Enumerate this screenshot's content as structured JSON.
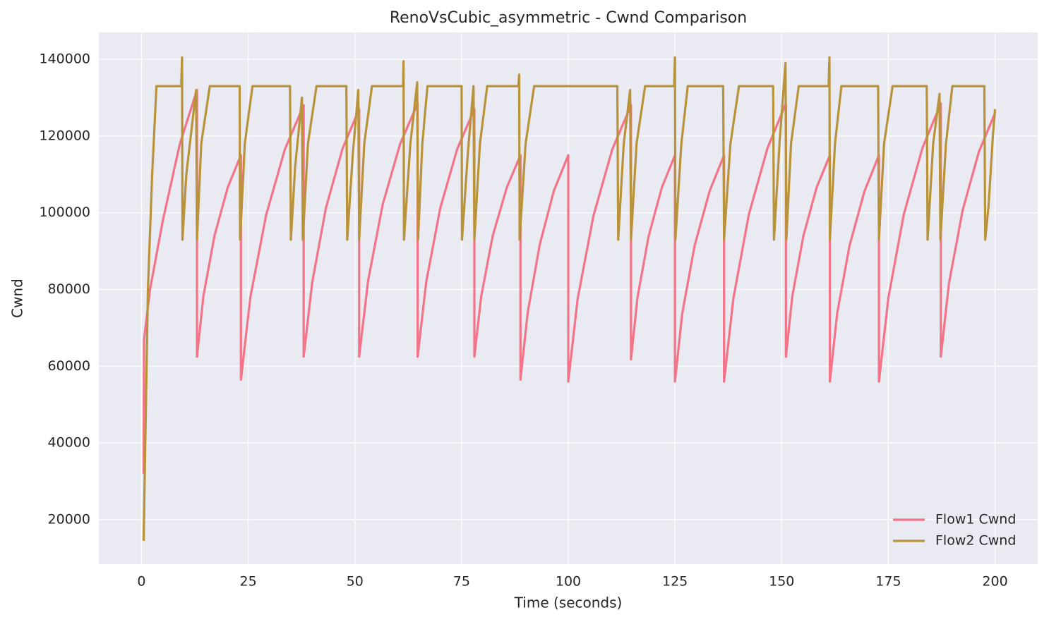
{
  "chart_data": {
    "type": "line",
    "title": "RenoVsCubic_asymmetric - Cwnd Comparison",
    "x_label": "Time (seconds)",
    "y_label": "Cwnd",
    "xlim": [
      -10,
      210
    ],
    "ylim": [
      8400,
      147000
    ],
    "xticks": [
      0,
      25,
      50,
      75,
      100,
      125,
      150,
      175,
      200
    ],
    "yticks": [
      20000,
      40000,
      60000,
      80000,
      100000,
      120000,
      140000
    ],
    "grid": true,
    "legend": "lower right",
    "series": [
      {
        "name": "Flow1 Cwnd",
        "color": "#f37488",
        "x": [
          0.5,
          0.6,
          2,
          5,
          9,
          13,
          13,
          14.5,
          17.1,
          20.2,
          23.3,
          23.3,
          25.5,
          29.2,
          33.6,
          38,
          38,
          40,
          43.2,
          47.1,
          51,
          51,
          53.1,
          56.5,
          60.6,
          64.7,
          64.7,
          66.7,
          70,
          74,
          78,
          78,
          79.6,
          82.3,
          85.6,
          88.8,
          88.8,
          90.5,
          93.3,
          96.6,
          100,
          100,
          102.2,
          105.9,
          110.3,
          114.7,
          114.7,
          116.2,
          118.8,
          121.9,
          125,
          125,
          126.7,
          129.6,
          133.1,
          136.5,
          136.5,
          138.7,
          142.3,
          146.7,
          151,
          151,
          152.5,
          155.1,
          158.2,
          161.3,
          161.3,
          163,
          165.9,
          169.4,
          172.8,
          172.8,
          175,
          178.6,
          183,
          187.3,
          187.3,
          189.2,
          192.4,
          196.2,
          200
        ],
        "values": [
          32000,
          67000,
          80000,
          98000,
          118000,
          132000,
          62500,
          78250,
          94000,
          106600,
          115000,
          56500,
          77950,
          99400,
          116560,
          128000,
          62500,
          81850,
          101200,
          116680,
          127000,
          62500,
          82300,
          102100,
          117940,
          128500,
          62500,
          81850,
          101200,
          116680,
          127000,
          62500,
          78250,
          94000,
          106600,
          115000,
          56500,
          74050,
          91600,
          105640,
          115000,
          56000,
          77600,
          99200,
          116480,
          128000,
          61800,
          77760,
          93720,
          106490,
          115000,
          56000,
          73700,
          91400,
          105560,
          115000,
          56000,
          77750,
          99500,
          116900,
          128500,
          62500,
          78250,
          94000,
          106600,
          115000,
          56000,
          73700,
          91400,
          105560,
          115000,
          56000,
          77750,
          99500,
          116900,
          128500,
          62500,
          81550,
          100600,
          115840,
          126000
        ]
      },
      {
        "name": "Flow2 Cwnd",
        "color": "#b9933a",
        "x": [
          0.5,
          0.7,
          1.5,
          2.5,
          3.5,
          9.3,
          9.5,
          9.6,
          10.5,
          12.8,
          13,
          14,
          16,
          23,
          23.1,
          24.2,
          26,
          34.8,
          35,
          36,
          37.6,
          37.8,
          39,
          41,
          48,
          48.2,
          49.5,
          50.8,
          51,
          52.2,
          54,
          61.3,
          61.4,
          61.5,
          63,
          64.6,
          64.8,
          65.8,
          67,
          75,
          75.1,
          76.5,
          77.8,
          78,
          79.3,
          81,
          88.3,
          88.5,
          88.6,
          90,
          92,
          111.5,
          111.7,
          113,
          114.5,
          114.7,
          116,
          118,
          124.8,
          125,
          125.1,
          126.5,
          128,
          136.3,
          136.5,
          138,
          140,
          148,
          148.2,
          149.5,
          150.9,
          151.1,
          152.2,
          154,
          161,
          161.2,
          161.3,
          162.5,
          164,
          172.6,
          172.8,
          174,
          176,
          184,
          184.2,
          185.5,
          187,
          187.2,
          188.5,
          190,
          197.5,
          197.7,
          198.5,
          199.5,
          200
        ],
        "values": [
          14500,
          28000,
          80000,
          110000,
          133000,
          133000,
          140500,
          93000,
          110000,
          132000,
          93000,
          118000,
          133000,
          133000,
          93000,
          118000,
          133000,
          133000,
          93000,
          112000,
          130000,
          93000,
          118000,
          133000,
          133000,
          93000,
          115000,
          132000,
          93000,
          118000,
          133000,
          133000,
          139500,
          93000,
          118000,
          134000,
          93000,
          118000,
          133000,
          133000,
          93000,
          116000,
          133000,
          93000,
          118000,
          133000,
          133000,
          136000,
          93000,
          118000,
          133000,
          133000,
          93000,
          118000,
          132000,
          93000,
          118000,
          133000,
          133000,
          140500,
          93000,
          118000,
          133000,
          133000,
          93000,
          118000,
          133000,
          133000,
          93000,
          118000,
          139000,
          93000,
          118000,
          133000,
          133000,
          140500,
          93000,
          118000,
          133000,
          133000,
          93000,
          118000,
          133000,
          133000,
          93000,
          118000,
          131000,
          93000,
          118000,
          133000,
          133000,
          93000,
          102000,
          120000,
          127000
        ]
      }
    ]
  }
}
